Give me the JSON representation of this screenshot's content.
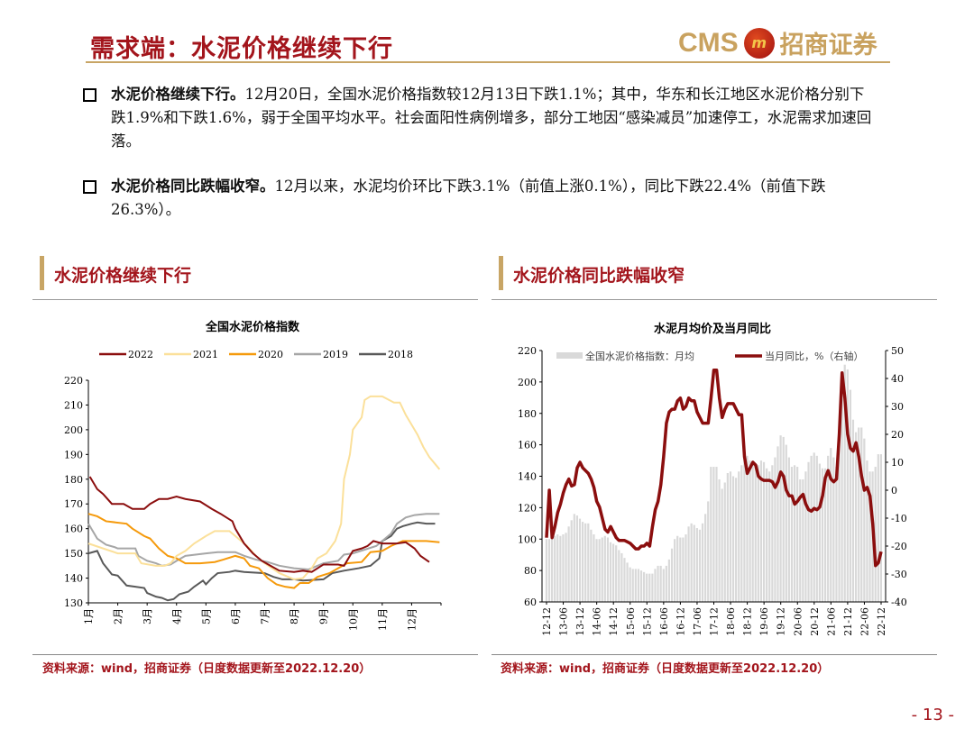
{
  "header": {
    "title": "需求端：水泥价格继续下行",
    "logo_text": "CMS",
    "logo_cn": "招商证券"
  },
  "bullets": [
    {
      "bold": "水泥价格继续下行。",
      "text": "12月20日，全国水泥价格指数较12月13日下跌1.1%；其中，华东和长江地区水泥价格分别下跌1.9%和下跌1.6%，弱于全国平均水平。社会面阳性病例增多，部分工地因“感染减员”加速停工，水泥需求加速回落。"
    },
    {
      "bold": "水泥价格同比跌幅收窄。",
      "text": "12月以来，水泥均价环比下跌3.1%（前值上涨0.1%），同比下跌22.4%（前值下跌26.3%）。"
    }
  ],
  "sections": [
    {
      "label": "水泥价格继续下行"
    },
    {
      "label": "水泥价格同比跌幅收窄"
    }
  ],
  "sources": [
    "资料来源：wind，招商证券（日度数据更新至2022.12.20）",
    "资料来源：wind，招商证券（日度数据更新至2022.12.20）"
  ],
  "page_number": "- 13 -",
  "chart_data": [
    {
      "type": "line",
      "title": "全国水泥价格指数",
      "xlabel": "",
      "ylabel": "",
      "ylim": [
        130,
        220
      ],
      "yticks": [
        130,
        140,
        150,
        160,
        170,
        180,
        190,
        200,
        210,
        220
      ],
      "xticks": [
        "1月",
        "2月",
        "3月",
        "4月",
        "5月",
        "6月",
        "7月",
        "8月",
        "9月",
        "10月",
        "11月",
        "12月"
      ],
      "xlim": [
        0,
        12
      ],
      "legend": "top",
      "series": [
        {
          "name": "2022",
          "color": "#8b0e0e",
          "points": [
            [
              0.05,
              181
            ],
            [
              0.3,
              176
            ],
            [
              0.5,
              174
            ],
            [
              0.8,
              170
            ],
            [
              1.2,
              170
            ],
            [
              1.5,
              168
            ],
            [
              1.9,
              168
            ],
            [
              2.1,
              170
            ],
            [
              2.4,
              172
            ],
            [
              2.7,
              172
            ],
            [
              3.0,
              173
            ],
            [
              3.3,
              172
            ],
            [
              3.8,
              171
            ],
            [
              4.2,
              168
            ],
            [
              4.5,
              166
            ],
            [
              4.9,
              163
            ],
            [
              5.0,
              160
            ],
            [
              5.3,
              154
            ],
            [
              5.6,
              150
            ],
            [
              5.9,
              147
            ],
            [
              6.2,
              145
            ],
            [
              6.5,
              143
            ],
            [
              7.0,
              142.5
            ],
            [
              7.3,
              143
            ],
            [
              7.6,
              142.5
            ],
            [
              8.0,
              145.5
            ],
            [
              8.5,
              145.5
            ],
            [
              8.7,
              145
            ],
            [
              9.0,
              151
            ],
            [
              9.3,
              152
            ],
            [
              9.5,
              153
            ],
            [
              9.7,
              155
            ],
            [
              10.0,
              154
            ],
            [
              10.5,
              154
            ],
            [
              10.8,
              154.5
            ],
            [
              11.1,
              152
            ],
            [
              11.3,
              149
            ],
            [
              11.6,
              146.5
            ]
          ]
        },
        {
          "name": "2021",
          "color": "#fbe09a",
          "points": [
            [
              0,
              154
            ],
            [
              0.5,
              152
            ],
            [
              1.0,
              150
            ],
            [
              1.6,
              150
            ],
            [
              1.8,
              146
            ],
            [
              2.3,
              145
            ],
            [
              2.6,
              145
            ],
            [
              2.8,
              146
            ],
            [
              3.0,
              149
            ],
            [
              3.3,
              151
            ],
            [
              3.6,
              154
            ],
            [
              4.0,
              157
            ],
            [
              4.3,
              159
            ],
            [
              4.8,
              159
            ],
            [
              5.0,
              157
            ],
            [
              5.4,
              153
            ],
            [
              5.7,
              149
            ],
            [
              6.0,
              146
            ],
            [
              6.5,
              142
            ],
            [
              7.0,
              139.5
            ],
            [
              7.3,
              140
            ],
            [
              7.6,
              144
            ],
            [
              7.8,
              148
            ],
            [
              8.1,
              150
            ],
            [
              8.4,
              155
            ],
            [
              8.6,
              162
            ],
            [
              8.7,
              180
            ],
            [
              8.9,
              190
            ],
            [
              9.0,
              200
            ],
            [
              9.3,
              205
            ],
            [
              9.4,
              212
            ],
            [
              9.6,
              213.5
            ],
            [
              10.0,
              213.5
            ],
            [
              10.4,
              211
            ],
            [
              10.6,
              211
            ],
            [
              10.8,
              206
            ],
            [
              11.0,
              202
            ],
            [
              11.2,
              198
            ],
            [
              11.4,
              193
            ],
            [
              11.6,
              189
            ],
            [
              11.95,
              184
            ]
          ]
        },
        {
          "name": "2020",
          "color": "#f59a0c",
          "points": [
            [
              0,
              166
            ],
            [
              0.3,
              165
            ],
            [
              0.6,
              163
            ],
            [
              1.3,
              162
            ],
            [
              1.5,
              160
            ],
            [
              1.9,
              157
            ],
            [
              2.1,
              156
            ],
            [
              2.4,
              152
            ],
            [
              2.7,
              149
            ],
            [
              3.0,
              148
            ],
            [
              3.3,
              146
            ],
            [
              3.8,
              146
            ],
            [
              4.3,
              146.5
            ],
            [
              4.6,
              147.5
            ],
            [
              5.0,
              149
            ],
            [
              5.3,
              148
            ],
            [
              5.5,
              145
            ],
            [
              5.8,
              144
            ],
            [
              6.1,
              140
            ],
            [
              6.4,
              137.5
            ],
            [
              6.7,
              136.5
            ],
            [
              7.0,
              136
            ],
            [
              7.2,
              138
            ],
            [
              7.5,
              138
            ],
            [
              7.8,
              140.5
            ],
            [
              8.2,
              142
            ],
            [
              8.5,
              144
            ],
            [
              8.8,
              146
            ],
            [
              9.3,
              146.5
            ],
            [
              9.6,
              150.5
            ],
            [
              10.0,
              151
            ],
            [
              10.3,
              153
            ],
            [
              10.7,
              155
            ],
            [
              11.5,
              155
            ],
            [
              11.95,
              154.5
            ]
          ]
        },
        {
          "name": "2019",
          "color": "#a6a6a6",
          "points": [
            [
              0,
              162
            ],
            [
              0.1,
              160
            ],
            [
              0.3,
              156
            ],
            [
              0.6,
              153.5
            ],
            [
              0.9,
              152.5
            ],
            [
              1.0,
              152
            ],
            [
              1.6,
              152
            ],
            [
              1.7,
              149
            ],
            [
              2.0,
              147
            ],
            [
              2.3,
              146
            ],
            [
              2.5,
              145
            ],
            [
              2.8,
              145.5
            ],
            [
              3.0,
              147
            ],
            [
              3.3,
              149
            ],
            [
              4.0,
              150
            ],
            [
              4.4,
              150.5
            ],
            [
              5.0,
              150.5
            ],
            [
              5.3,
              149
            ],
            [
              5.7,
              147.5
            ],
            [
              6.1,
              146.5
            ],
            [
              6.5,
              145
            ],
            [
              7.0,
              144
            ],
            [
              7.5,
              143.5
            ],
            [
              8.0,
              146
            ],
            [
              8.5,
              147
            ],
            [
              8.7,
              149.5
            ],
            [
              9.0,
              150
            ],
            [
              9.4,
              151.5
            ],
            [
              9.8,
              153
            ],
            [
              10.0,
              155
            ],
            [
              10.3,
              158
            ],
            [
              10.5,
              162
            ],
            [
              10.8,
              164.5
            ],
            [
              11.1,
              165.5
            ],
            [
              11.5,
              166
            ],
            [
              11.95,
              166
            ]
          ]
        },
        {
          "name": "2018",
          "color": "#595959",
          "points": [
            [
              0,
              150
            ],
            [
              0.3,
              151
            ],
            [
              0.5,
              146
            ],
            [
              0.8,
              141.5
            ],
            [
              1.0,
              141
            ],
            [
              1.3,
              137
            ],
            [
              1.6,
              136.5
            ],
            [
              1.9,
              136
            ],
            [
              2.0,
              134
            ],
            [
              2.3,
              132.5
            ],
            [
              2.5,
              132
            ],
            [
              2.7,
              131
            ],
            [
              2.9,
              131.5
            ],
            [
              3.1,
              133.5
            ],
            [
              3.4,
              134.5
            ],
            [
              3.6,
              136.5
            ],
            [
              3.9,
              139
            ],
            [
              4.0,
              137.5
            ],
            [
              4.2,
              140
            ],
            [
              4.4,
              142
            ],
            [
              4.8,
              142.5
            ],
            [
              5.0,
              143
            ],
            [
              5.3,
              142.5
            ],
            [
              6.0,
              142
            ],
            [
              6.3,
              140.5
            ],
            [
              6.6,
              139.5
            ],
            [
              7.0,
              139.5
            ],
            [
              7.3,
              139
            ],
            [
              8.0,
              139.5
            ],
            [
              8.3,
              142
            ],
            [
              8.7,
              143
            ],
            [
              9.2,
              144
            ],
            [
              9.6,
              145
            ],
            [
              9.9,
              148
            ],
            [
              10.0,
              155
            ],
            [
              10.3,
              157
            ],
            [
              10.5,
              160
            ],
            [
              10.7,
              161
            ],
            [
              11.0,
              162
            ],
            [
              11.2,
              162.5
            ],
            [
              11.5,
              162
            ],
            [
              11.8,
              162
            ]
          ]
        }
      ]
    },
    {
      "type": "bar+line",
      "title": "水泥月均价及当月同比",
      "ylim": [
        60,
        220
      ],
      "yticks": [
        60,
        80,
        100,
        120,
        140,
        160,
        180,
        200,
        220
      ],
      "y2lim": [
        -40,
        50
      ],
      "y2ticks": [
        -40,
        -30,
        -20,
        -10,
        0,
        10,
        20,
        30,
        40,
        50
      ],
      "xticks": [
        "12-12",
        "13-06",
        "13-12",
        "14-06",
        "14-12",
        "15-06",
        "15-12",
        "16-06",
        "16-12",
        "17-06",
        "17-12",
        "18-06",
        "18-12",
        "19-06",
        "19-12",
        "20-06",
        "20-12",
        "21-06",
        "21-12",
        "22-06",
        "22-12"
      ],
      "legend": "top",
      "bar_series": {
        "name": "全国水泥价格指数：月均",
        "color": "#d9d9d9",
        "values": [
          100,
          100,
          101,
          102,
          103,
          102,
          103,
          104,
          108,
          112,
          116,
          115,
          113,
          111,
          110,
          110,
          106,
          103,
          100,
          100,
          101,
          102,
          101,
          98,
          97,
          96,
          93,
          91,
          88,
          85,
          82,
          81,
          81,
          81,
          80,
          79,
          78,
          78,
          78,
          81,
          83,
          83,
          81,
          83,
          87,
          94,
          100,
          102,
          101,
          101,
          103,
          108,
          110,
          109,
          107,
          106,
          110,
          116,
          124,
          146,
          146,
          146,
          138,
          132,
          136,
          142,
          143,
          140,
          139,
          143,
          147,
          150,
          153,
          150,
          147,
          146,
          147,
          150,
          149,
          145,
          143,
          147,
          152,
          159,
          166,
          165,
          160,
          152,
          146,
          147,
          146,
          138,
          138,
          143,
          149,
          153,
          155,
          153,
          148,
          145,
          145,
          153,
          158,
          152,
          146,
          160,
          200,
          211,
          208,
          195,
          176,
          168,
          171,
          171,
          164,
          150,
          143,
          143,
          146,
          154,
          154
        ]
      },
      "line_series": {
        "name": "当月同比，%（右轴）",
        "color": "#8b0e0e",
        "values": [
          -17,
          0,
          -17,
          -13,
          -8,
          -5,
          -1,
          2,
          4,
          1.5,
          2,
          8,
          10,
          8,
          7,
          6,
          4,
          1,
          -4,
          -6,
          -10,
          -14,
          -15,
          -13,
          -15,
          -17,
          -18,
          -18,
          -18,
          -18.5,
          -19,
          -20,
          -21,
          -21,
          -20,
          -20,
          -19,
          -20,
          -13,
          -7,
          -4,
          2,
          12,
          24,
          28,
          29,
          29,
          32,
          33,
          29,
          30,
          33,
          32,
          32,
          28,
          26,
          24,
          24,
          24,
          33,
          43,
          43,
          33,
          26,
          29,
          31,
          31,
          31,
          29,
          27,
          27,
          12,
          6,
          8,
          10,
          9,
          5,
          4,
          3.5,
          3.5,
          3.5,
          3,
          1,
          3,
          6.5,
          5,
          0,
          -2,
          -2,
          -5,
          -4,
          -2.5,
          -1.5,
          -5,
          -7,
          -7.5,
          -6.5,
          -7,
          -6,
          -2,
          4.5,
          7,
          4,
          3,
          4,
          20,
          42,
          33,
          20,
          15,
          14,
          17,
          12,
          5,
          0,
          1,
          -2,
          -12,
          -27,
          -26,
          -22
        ]
      }
    }
  ]
}
